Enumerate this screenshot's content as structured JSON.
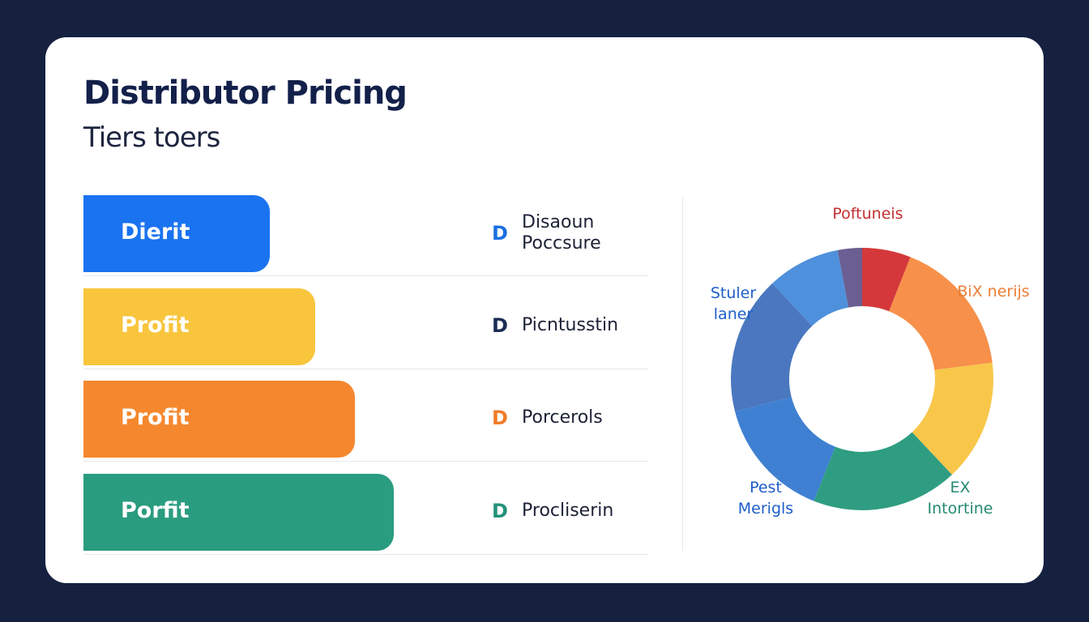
{
  "header": {
    "title": "Distributor Pricing",
    "subtitle": "Tiers toers"
  },
  "chart_data": [
    {
      "type": "bar",
      "orientation": "horizontal",
      "categories": [
        "Dierit",
        "Profit",
        "Profit",
        "Porfit"
      ],
      "values": [
        33,
        41,
        48,
        55
      ],
      "colors": [
        "#1a73f0",
        "#f8c53d",
        "#f5882e",
        "#2a9c80"
      ],
      "xlim": [
        0,
        100
      ]
    },
    {
      "type": "pie",
      "donut": true,
      "categories": [
        "Poftuneis",
        "BiX nerijs",
        null,
        "EX Intortine",
        "Pest Merigls",
        null,
        "Stuler laner",
        null
      ],
      "values": [
        6,
        17,
        15,
        18,
        15,
        17,
        9,
        3
      ],
      "colors": [
        "#d4383a",
        "#f7904a",
        "#f8c74a",
        "#2f9d82",
        "#3f80d2",
        "#4a77bf",
        "#4f90dc",
        "#695f93"
      ],
      "label_colors": [
        "#c22f2f",
        "#ec7e35",
        null,
        "#248a70",
        "#1d5ec9",
        null,
        "#1d5ec9",
        null
      ]
    }
  ],
  "details": [
    {
      "icon": "D",
      "text": "Disaoun Poccsure",
      "color": "#1a6fe0"
    },
    {
      "icon": "D",
      "text": "Picntusstin",
      "color": "#1b2b55"
    },
    {
      "icon": "D",
      "text": "Porcerols",
      "color": "#f07d28"
    },
    {
      "icon": "D",
      "text": "Proclіserin",
      "color": "#23917a"
    }
  ]
}
